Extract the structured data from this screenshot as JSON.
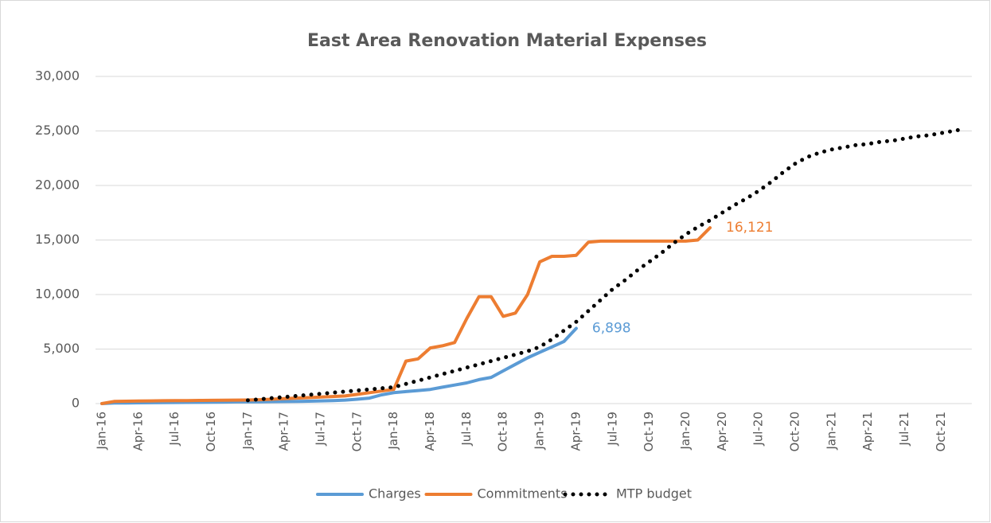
{
  "chart_data": {
    "type": "line",
    "title": "East Area Renovation Material Expenses",
    "categories": [
      "Jan-16",
      null,
      null,
      "Apr-16",
      null,
      null,
      "Jul-16",
      null,
      null,
      "Oct-16",
      null,
      null,
      "Jan-17",
      null,
      null,
      "Apr-17",
      null,
      null,
      "Jul-17",
      null,
      null,
      "Oct-17",
      null,
      null,
      "Jan-18",
      null,
      null,
      "Apr-18",
      null,
      null,
      "Jul-18",
      null,
      null,
      "Oct-18",
      null,
      null,
      "Jan-19",
      null,
      null,
      "Apr-19",
      null,
      null,
      "Jul-19",
      null,
      null,
      "Oct-19",
      null,
      null,
      "Jan-20",
      null,
      null,
      "Apr-20",
      null,
      null,
      "Jul-20",
      null,
      null,
      "Oct-20",
      null,
      null,
      "Jan-21",
      null,
      null,
      "Apr-21",
      null,
      null,
      "Jul-21",
      null,
      null,
      "Oct-21",
      null,
      null
    ],
    "series": [
      {
        "name": "Charges",
        "color": "#5b9bd5",
        "style": "solid",
        "values": [
          0,
          50,
          60,
          70,
          80,
          90,
          100,
          110,
          120,
          130,
          140,
          150,
          160,
          170,
          180,
          190,
          200,
          220,
          250,
          280,
          320,
          400,
          500,
          800,
          1000,
          1100,
          1200,
          1300,
          1500,
          1700,
          1900,
          2200,
          2400,
          3000,
          3600,
          4200,
          4700,
          5200,
          5700,
          6898,
          null,
          null,
          null,
          null,
          null,
          null,
          null,
          null,
          null,
          null,
          null,
          null,
          null,
          null,
          null,
          null,
          null,
          null,
          null,
          null,
          null,
          null,
          null,
          null,
          null,
          null,
          null,
          null,
          null,
          null,
          null,
          null
        ],
        "value_labels": [
          null,
          null,
          null,
          null,
          null,
          null,
          null,
          null,
          null,
          null,
          null,
          null,
          null,
          null,
          null,
          null,
          null,
          null,
          null,
          null,
          null,
          null,
          null,
          null,
          null,
          null,
          null,
          null,
          null,
          null,
          null,
          null,
          null,
          null,
          null,
          null,
          null,
          null,
          null,
          "6,898",
          null,
          null,
          null,
          null,
          null,
          null,
          null,
          null,
          null,
          null,
          null,
          null,
          null,
          null,
          null,
          null,
          null,
          null,
          null,
          null,
          null,
          null,
          null,
          null,
          null,
          null,
          null,
          null,
          null,
          null,
          null,
          null
        ]
      },
      {
        "name": "Commitments",
        "color": "#ed7d31",
        "style": "solid",
        "values": [
          0,
          200,
          220,
          240,
          250,
          260,
          270,
          280,
          290,
          300,
          310,
          320,
          330,
          360,
          400,
          450,
          500,
          550,
          600,
          650,
          700,
          850,
          1000,
          1150,
          1300,
          3900,
          4100,
          5100,
          5300,
          5600,
          7800,
          9800,
          9800,
          8000,
          8300,
          10000,
          13000,
          13500,
          13500,
          13600,
          14800,
          14900,
          14900,
          14900,
          14900,
          14900,
          14900,
          14900,
          14900,
          15000,
          16121,
          null,
          null,
          null,
          null,
          null,
          null,
          null,
          null,
          null,
          null,
          null,
          null,
          null,
          null,
          null,
          null,
          null,
          null,
          null,
          null,
          null
        ],
        "value_labels": [
          null,
          null,
          null,
          null,
          null,
          null,
          null,
          null,
          null,
          null,
          null,
          null,
          null,
          null,
          null,
          null,
          null,
          null,
          null,
          null,
          null,
          null,
          null,
          null,
          null,
          null,
          null,
          null,
          null,
          null,
          null,
          null,
          null,
          null,
          null,
          null,
          null,
          null,
          null,
          null,
          null,
          null,
          null,
          null,
          null,
          null,
          null,
          null,
          null,
          null,
          "16,121",
          null,
          null,
          null,
          null,
          null,
          null,
          null,
          null,
          null,
          null,
          null,
          null,
          null,
          null,
          null,
          null,
          null,
          null,
          null,
          null,
          null
        ]
      },
      {
        "name": "MTP budget",
        "color": "#000000",
        "style": "dotted",
        "values": [
          null,
          null,
          null,
          null,
          null,
          null,
          null,
          null,
          null,
          null,
          null,
          null,
          300,
          400,
          500,
          600,
          700,
          800,
          900,
          1000,
          1100,
          1200,
          1300,
          1400,
          1500,
          1800,
          2100,
          2400,
          2700,
          3000,
          3300,
          3600,
          3900,
          4200,
          4500,
          4800,
          5200,
          5900,
          6700,
          7500,
          8500,
          9500,
          10500,
          11300,
          12200,
          13000,
          13800,
          14700,
          15500,
          16200,
          16800,
          17500,
          18200,
          18800,
          19500,
          20300,
          21200,
          22000,
          22600,
          23000,
          23300,
          23500,
          23700,
          23800,
          24000,
          24100,
          24300,
          24500,
          24600,
          24800,
          25000,
          25200
        ]
      }
    ],
    "ylim": [
      0,
      30000
    ],
    "yticks": [
      0,
      {
        "value": 5000,
        "label": "5,000"
      },
      {
        "value": 10000,
        "label": "10,000"
      },
      {
        "value": 15000,
        "label": "15,000"
      },
      {
        "value": 20000,
        "label": "20,000"
      },
      {
        "value": 25000,
        "label": "25,000"
      },
      {
        "value": 30000,
        "label": "30,000"
      }
    ],
    "grid": true,
    "legend": "bottom"
  }
}
